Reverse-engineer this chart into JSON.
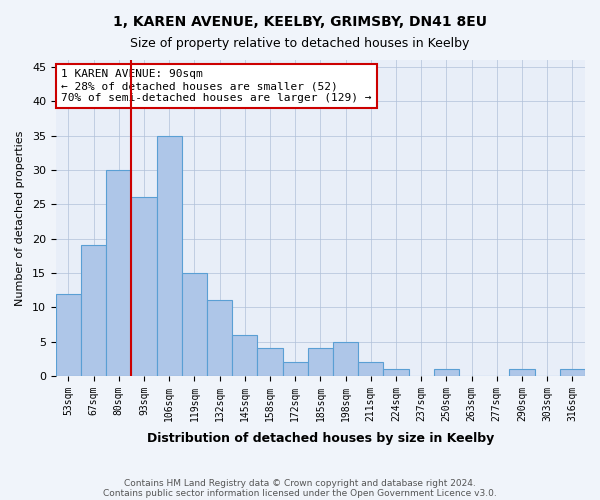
{
  "title1": "1, KAREN AVENUE, KEELBY, GRIMSBY, DN41 8EU",
  "title2": "Size of property relative to detached houses in Keelby",
  "xlabel": "Distribution of detached houses by size in Keelby",
  "ylabel": "Number of detached properties",
  "bins": [
    "53sqm",
    "67sqm",
    "80sqm",
    "93sqm",
    "106sqm",
    "119sqm",
    "132sqm",
    "145sqm",
    "158sqm",
    "172sqm",
    "185sqm",
    "198sqm",
    "211sqm",
    "224sqm",
    "237sqm",
    "250sqm",
    "263sqm",
    "277sqm",
    "290sqm",
    "303sqm",
    "316sqm"
  ],
  "values": [
    12,
    19,
    30,
    26,
    35,
    15,
    11,
    6,
    4,
    2,
    4,
    5,
    2,
    1,
    0,
    1,
    0,
    0,
    1,
    0,
    1
  ],
  "bar_color": "#aec6e8",
  "bar_edge_color": "#5a9fd4",
  "property_bin_index": 3,
  "vline_color": "#cc0000",
  "annotation_box_edge": "#cc0000",
  "annotation_line1": "1 KAREN AVENUE: 90sqm",
  "annotation_line2": "← 28% of detached houses are smaller (52)",
  "annotation_line3": "70% of semi-detached houses are larger (129) →",
  "ylim": [
    0,
    46
  ],
  "yticks": [
    0,
    5,
    10,
    15,
    20,
    25,
    30,
    35,
    40,
    45
  ],
  "footer1": "Contains HM Land Registry data © Crown copyright and database right 2024.",
  "footer2": "Contains public sector information licensed under the Open Government Licence v3.0.",
  "bg_color": "#f0f4fa",
  "plot_bg_color": "#e8eef8"
}
